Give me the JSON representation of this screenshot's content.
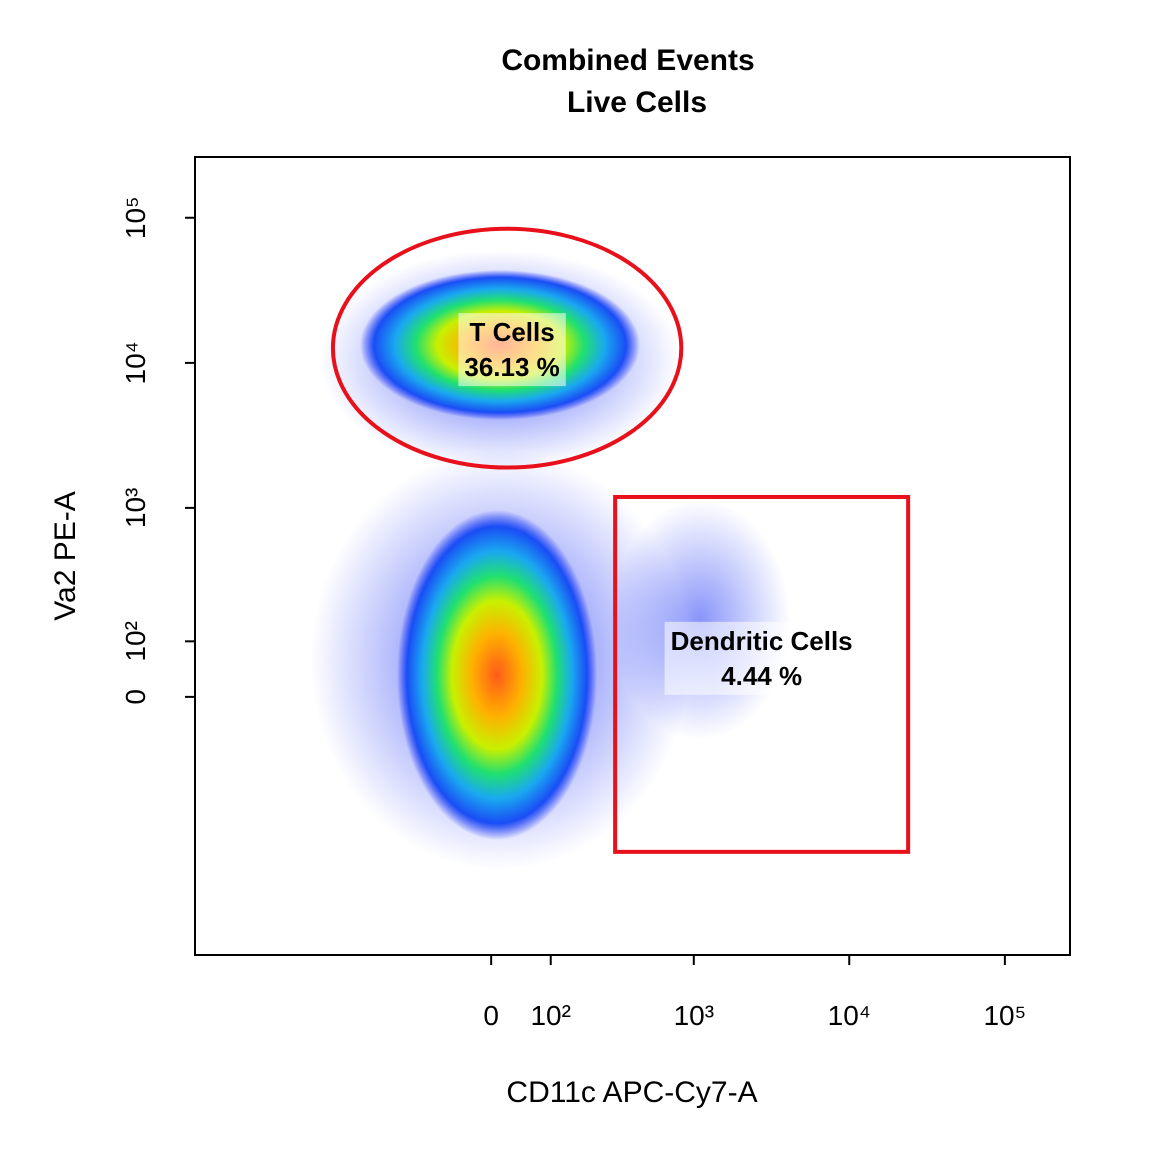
{
  "chart_data": {
    "type": "gate-plot",
    "title": "Combined Events",
    "subtitle": "Live Cells",
    "x_label": "CD11c APC-Cy7-A",
    "y_label": "Va2 PE-A",
    "x_scale": "biexponential",
    "y_scale": "biexponential",
    "xlim": [
      -4000,
      262143
    ],
    "ylim": [
      -3000,
      262143
    ],
    "xticks": [
      0,
      {
        "value": 100,
        "label": "10²"
      },
      {
        "value": 1000,
        "label": "10³"
      },
      {
        "value": 10000,
        "label": "10⁴"
      },
      {
        "value": 100000,
        "label": "10⁵"
      }
    ],
    "yticks": [
      0,
      {
        "value": 100,
        "label": "10²"
      },
      {
        "value": 1000,
        "label": "10³"
      },
      {
        "value": 10000,
        "label": "10⁴"
      },
      {
        "value": 100000,
        "label": "10⁵"
      }
    ],
    "gate_color": "#e8101a",
    "gates": [
      {
        "shape": "ellipse",
        "name": "T Cells",
        "values": [
          36.13
        ],
        "value_labels": [
          "36.13 %"
        ],
        "x": [
          -515,
          830
        ],
        "y": [
          1900,
          84000
        ]
      },
      {
        "shape": "rectangle",
        "name": "Dendritic Cells",
        "values": [
          4.44
        ],
        "value_labels": [
          "4.44 %"
        ],
        "x": [
          305,
          23900
        ],
        "y": [
          -580,
          1190
        ]
      }
    ]
  }
}
